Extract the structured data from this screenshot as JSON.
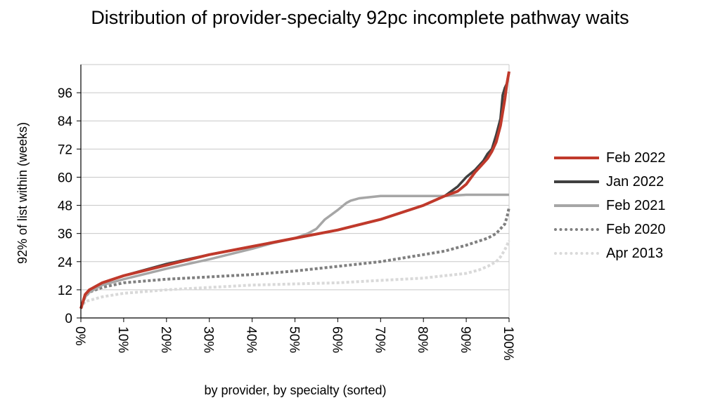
{
  "chart_data": {
    "type": "line",
    "title": "Distribution of provider-specialty 92pc incomplete pathway waits",
    "xlabel": "by provider, by specialty (sorted)",
    "ylabel": "92% of list within (weeks)",
    "xlim": [
      0,
      100
    ],
    "ylim": [
      0,
      108
    ],
    "x_ticks": [
      "0%",
      "10%",
      "20%",
      "30%",
      "40%",
      "50%",
      "60%",
      "70%",
      "80%",
      "90%",
      "100%"
    ],
    "y_ticks": [
      "0",
      "12",
      "24",
      "36",
      "48",
      "60",
      "72",
      "84",
      "96"
    ],
    "grid": "horizontal",
    "legend_position": "right",
    "series": [
      {
        "name": "Apr 2013",
        "color": "#d9d9d9",
        "style": "dotted",
        "x": [
          0,
          1,
          3,
          5,
          10,
          20,
          30,
          40,
          50,
          60,
          70,
          80,
          85,
          90,
          93,
          95,
          97,
          98,
          99,
          100
        ],
        "y": [
          4,
          7,
          8,
          9,
          10.5,
          12,
          13,
          14,
          14.5,
          15,
          16,
          17,
          18,
          19,
          20.5,
          22,
          24,
          26,
          29,
          33
        ]
      },
      {
        "name": "Feb 2020",
        "color": "#7f7f7f",
        "style": "dotted",
        "x": [
          0,
          1,
          2,
          5,
          10,
          20,
          30,
          40,
          50,
          60,
          70,
          80,
          85,
          90,
          95,
          97,
          98,
          99,
          99.5,
          100
        ],
        "y": [
          4,
          9,
          11,
          13,
          15,
          16.5,
          17.5,
          18.5,
          20,
          22,
          24,
          27,
          28.5,
          31,
          34,
          36,
          38,
          40,
          43,
          47
        ]
      },
      {
        "name": "Feb 2021",
        "color": "#a6a6a6",
        "style": "solid",
        "x": [
          0,
          1,
          2,
          5,
          10,
          20,
          30,
          40,
          45,
          50,
          53,
          55,
          57,
          60,
          62,
          63,
          65,
          70,
          75,
          80,
          85,
          90,
          95,
          100
        ],
        "y": [
          4,
          9,
          11,
          14,
          16.5,
          21,
          25,
          29.5,
          32,
          34,
          36,
          38,
          42,
          46,
          49,
          50,
          51,
          52,
          52,
          52,
          52,
          52.5,
          52.5,
          52.5
        ]
      },
      {
        "name": "Jan 2022",
        "color": "#404040",
        "style": "solid",
        "x": [
          0,
          1,
          2,
          5,
          10,
          20,
          30,
          40,
          50,
          60,
          70,
          80,
          85,
          88,
          90,
          92,
          94,
          95,
          96,
          97,
          98,
          98.5,
          99,
          99.5,
          100
        ],
        "y": [
          4,
          10,
          12,
          15,
          18,
          23,
          27,
          30.5,
          34,
          37.5,
          42,
          48,
          52,
          56,
          60,
          63,
          67,
          70,
          72,
          78,
          85,
          95,
          98,
          100,
          105
        ]
      },
      {
        "name": "Feb 2022",
        "color": "#c0392b",
        "style": "solid",
        "x": [
          0,
          1,
          2,
          5,
          10,
          20,
          30,
          40,
          50,
          60,
          70,
          80,
          85,
          88,
          90,
          92,
          94,
          95,
          96,
          97,
          98,
          99,
          99.5,
          100
        ],
        "y": [
          4,
          10,
          12,
          15,
          18,
          22.5,
          27,
          30.5,
          34,
          37.5,
          42,
          48,
          52,
          54,
          57,
          62,
          66,
          68,
          71,
          75,
          82,
          93,
          100,
          105
        ]
      }
    ],
    "legend_order": [
      "Feb 2022",
      "Jan 2022",
      "Feb 2021",
      "Feb 2020",
      "Apr 2013"
    ]
  }
}
